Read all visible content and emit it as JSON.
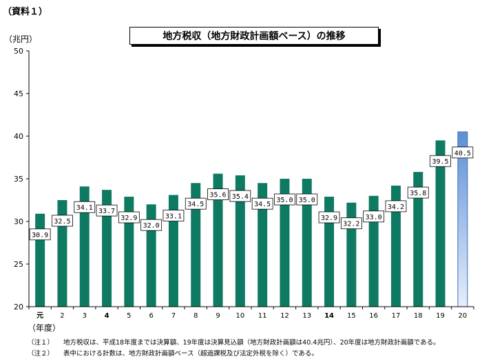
{
  "header": {
    "doc_label": "（資料１）",
    "unit_label": "（兆円）"
  },
  "chart_data": {
    "type": "bar",
    "title": "地方税収（地方財政計画額ベース）の推移",
    "xlabel": "（年度）",
    "ylabel": "（兆円）",
    "ylim": [
      20,
      50
    ],
    "yticks": [
      20,
      25,
      30,
      35,
      40,
      45,
      50
    ],
    "grid": false,
    "categories": [
      "元",
      "2",
      "3",
      "4",
      "5",
      "6",
      "7",
      "8",
      "9",
      "10",
      "11",
      "12",
      "13",
      "14",
      "15",
      "16",
      "17",
      "18",
      "19",
      "20"
    ],
    "bold_categories": [
      "元",
      "4",
      "14"
    ],
    "values": [
      30.9,
      32.5,
      34.1,
      33.7,
      32.9,
      32.0,
      33.1,
      34.5,
      35.6,
      35.4,
      34.5,
      35.0,
      35.0,
      32.9,
      32.2,
      33.0,
      34.2,
      35.8,
      39.5,
      40.5
    ],
    "value_labels": [
      "30.9",
      "32.5",
      "34.1",
      "33.7",
      "32.9",
      "32.0",
      "33.1",
      "34.5",
      "35.6",
      "35.4",
      "34.5",
      "35.0",
      "35.0",
      "32.9",
      "32.2",
      "33.0",
      "34.2",
      "35.8",
      "39.5",
      "40.5"
    ],
    "colors": {
      "bar": "#0e7a62",
      "last_bar_top": "#5b8fd6",
      "last_bar_bottom": "#e6eefb",
      "axis": "#000000"
    }
  },
  "notes": [
    {
      "mark": "（注１）",
      "text": "地方税収は、平成18年度までは決算額、19年度は決算見込額（地方財政計画額は40.4兆円）、20年度は地方財政計画額である。"
    },
    {
      "mark": "（注２）",
      "text": "表中における計数は、地方財政計画額ベース（超過課税及び法定外税を除く）である。"
    }
  ]
}
